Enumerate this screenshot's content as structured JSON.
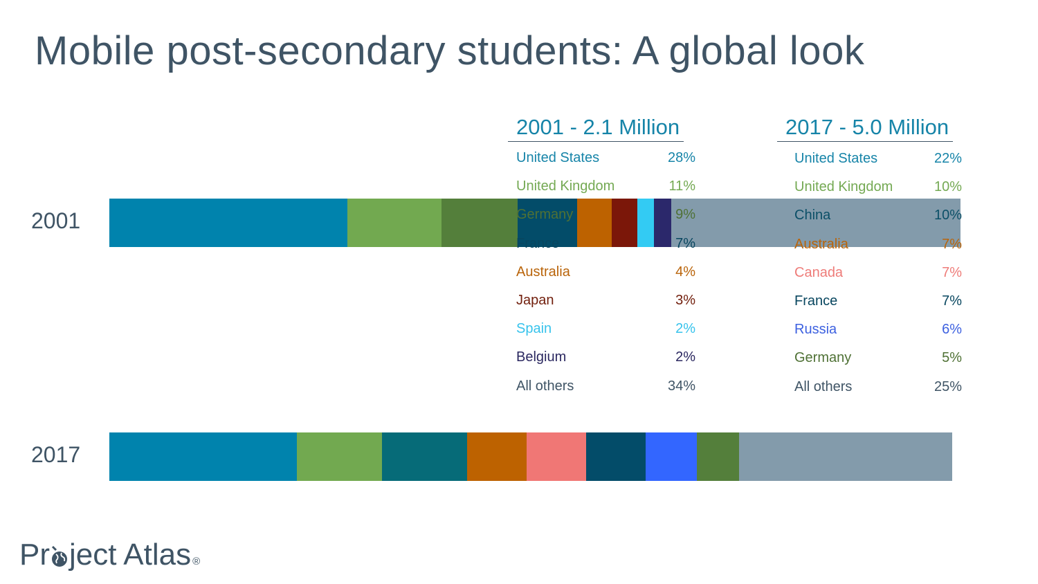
{
  "title": "Mobile post-secondary students: A global look",
  "logo": {
    "text_before": "Pr",
    "text_after": "ject Atlas",
    "registered": "®"
  },
  "chart_data": {
    "type": "bar",
    "orientation": "horizontal",
    "stacked": true,
    "unit": "%",
    "categories": [
      "2001",
      "2017"
    ],
    "bars": [
      {
        "year": "2001",
        "header": "2001 - 2.1 Million",
        "segments": [
          {
            "name": "United States",
            "value": 28,
            "label": "28%",
            "color": "#0083ad"
          },
          {
            "name": "United Kingdom",
            "value": 11,
            "label": "11%",
            "color": "#72a950"
          },
          {
            "name": "Germany",
            "value": 9,
            "label": "9%",
            "color": "#547f3b"
          },
          {
            "name": "France",
            "value": 7,
            "label": "7%",
            "color": "#034c69"
          },
          {
            "name": "Australia",
            "value": 4,
            "label": "4%",
            "color": "#bd6200"
          },
          {
            "name": "Japan",
            "value": 3,
            "label": "3%",
            "color": "#7b1709"
          },
          {
            "name": "Spain",
            "value": 2,
            "label": "2%",
            "color": "#33cbf3"
          },
          {
            "name": "Belgium",
            "value": 2,
            "label": "2%",
            "color": "#2b286b"
          },
          {
            "name": "All others",
            "value": 34,
            "label": "34%",
            "color": "#839bab"
          }
        ]
      },
      {
        "year": "2017",
        "header": "2017 - 5.0 Million",
        "segments": [
          {
            "name": "United States",
            "value": 22,
            "label": "22%",
            "color": "#0083ad"
          },
          {
            "name": "United Kingdom",
            "value": 10,
            "label": "10%",
            "color": "#72a950"
          },
          {
            "name": "China",
            "value": 10,
            "label": "10%",
            "color": "#066b78"
          },
          {
            "name": "Australia",
            "value": 7,
            "label": "7%",
            "color": "#bd6200"
          },
          {
            "name": "Canada",
            "value": 7,
            "label": "7%",
            "color": "#f07775"
          },
          {
            "name": "France",
            "value": 7,
            "label": "7%",
            "color": "#034c69"
          },
          {
            "name": "Russia",
            "value": 6,
            "label": "6%",
            "color": "#3366ff"
          },
          {
            "name": "Germany",
            "value": 5,
            "label": "5%",
            "color": "#547f3b"
          },
          {
            "name": "All others",
            "value": 25,
            "label": "25%",
            "color": "#839bab"
          }
        ]
      }
    ],
    "legend_text_colors": {
      "United States": "#1684a8",
      "United Kingdom": "#74a953",
      "Germany": "#4f7135",
      "France": "#08465f",
      "Australia": "#b9640a",
      "Japan": "#72200e",
      "Spain": "#37c3ec",
      "Belgium": "#2b2860",
      "China": "#0b4f67",
      "Canada": "#ee7c79",
      "Russia": "#3d61e0",
      "All others": "#3f5465"
    }
  }
}
